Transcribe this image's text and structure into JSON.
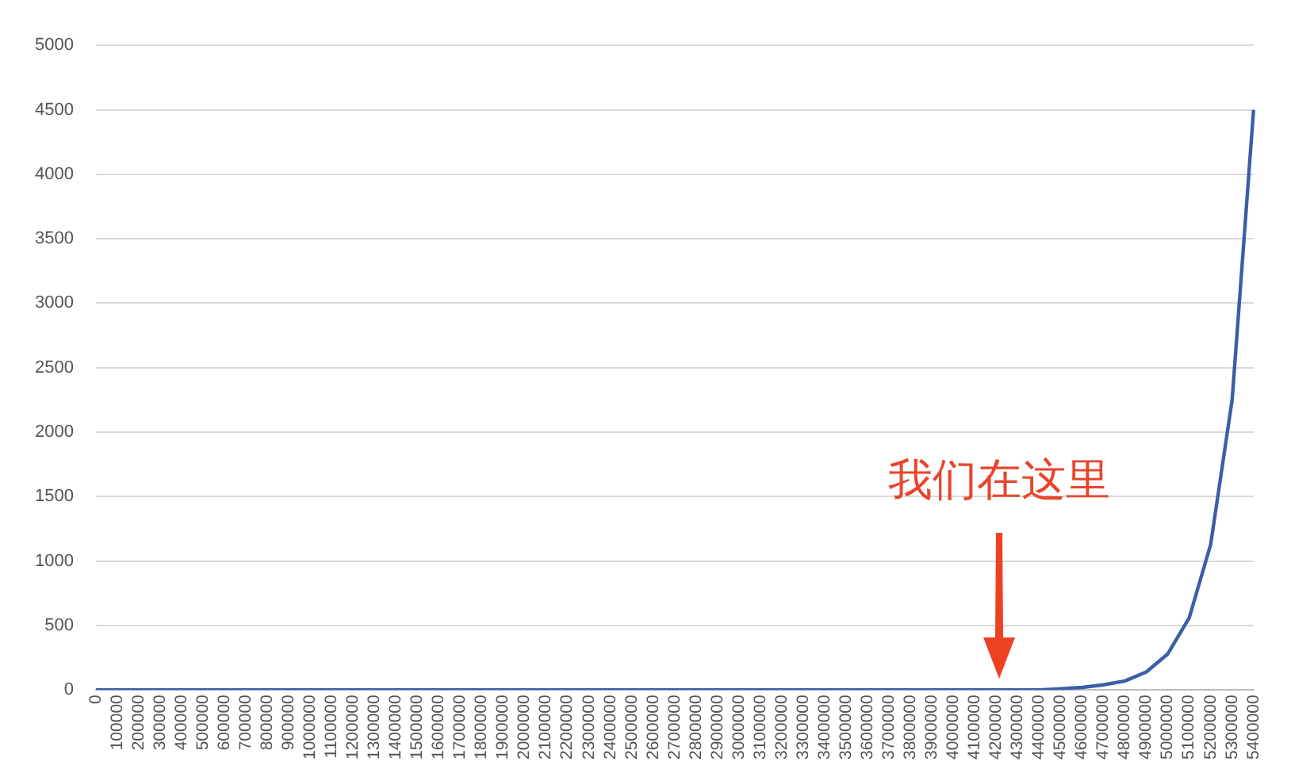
{
  "chart_data": {
    "type": "line",
    "categories": [
      "0",
      "100000",
      "200000",
      "300000",
      "400000",
      "500000",
      "600000",
      "700000",
      "800000",
      "900000",
      "1000000",
      "1100000",
      "1200000",
      "1300000",
      "1400000",
      "1500000",
      "1600000",
      "1700000",
      "1800000",
      "1900000",
      "2000000",
      "2100000",
      "2200000",
      "2300000",
      "2400000",
      "2500000",
      "2600000",
      "2700000",
      "2800000",
      "2900000",
      "3000000",
      "3100000",
      "3200000",
      "3300000",
      "3400000",
      "3500000",
      "3600000",
      "3700000",
      "3800000",
      "3900000",
      "4000000",
      "4100000",
      "4200000",
      "4300000",
      "4400000",
      "4500000",
      "4600000",
      "4700000",
      "4800000",
      "4900000",
      "5000000",
      "5100000",
      "5200000",
      "5300000",
      "5400000"
    ],
    "series": [
      {
        "color": "#3c5ea8",
        "values": [
          0,
          0,
          0,
          0,
          0,
          0,
          0,
          0,
          0,
          0,
          0,
          0,
          0,
          0,
          0,
          0,
          0,
          0,
          0,
          0,
          0,
          0,
          0,
          0,
          0,
          0,
          0,
          0,
          0,
          0,
          0,
          0,
          0,
          0,
          0,
          0,
          0,
          0,
          0,
          0,
          0,
          0,
          0,
          0,
          0,
          10,
          20,
          40,
          70,
          140,
          280,
          560,
          1130,
          2250,
          4500
        ]
      }
    ],
    "ylim": [
      0,
      5000
    ],
    "yticks": [
      0,
      500,
      1000,
      1500,
      2000,
      2500,
      3000,
      3500,
      4000,
      4500,
      5000
    ],
    "grid": "y",
    "legend": false,
    "marker": "none",
    "line_style": "solid",
    "annotations": [
      "我们在这里"
    ]
  }
}
